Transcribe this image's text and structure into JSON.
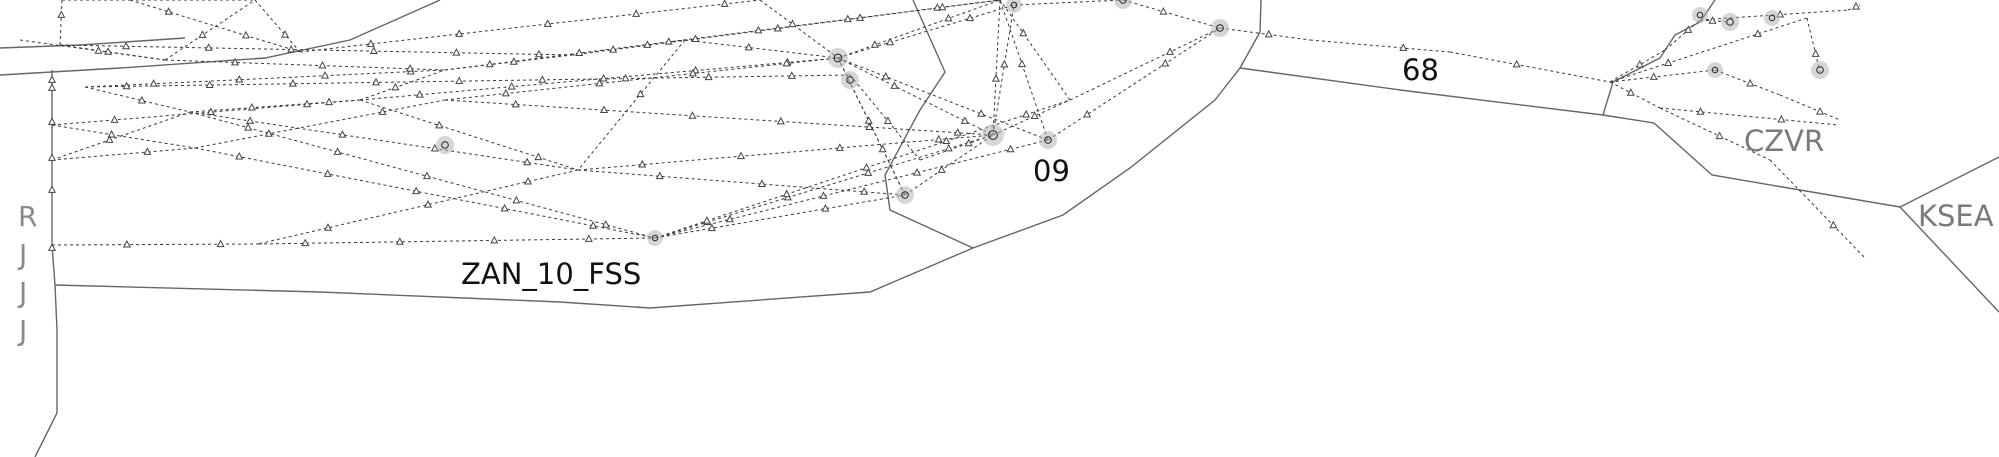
{
  "map": {
    "sector_labels": [
      "ZAN_10_FSS",
      "09",
      "68"
    ],
    "center_labels": [
      "CZVR",
      "KSEA"
    ],
    "vertical_letters": [
      "R",
      "J",
      "J",
      "J"
    ]
  },
  "colors": {
    "background": "#ffffff",
    "boundary": "#666666",
    "route": "#3a3a3a",
    "fix": "#444444",
    "airport_halo": "#b5b5b5",
    "sector_label": "#111111",
    "center_label": "#7a7a7a"
  },
  "symbols": {
    "fix": "triangle-icon",
    "airport": "circle-icon"
  }
}
